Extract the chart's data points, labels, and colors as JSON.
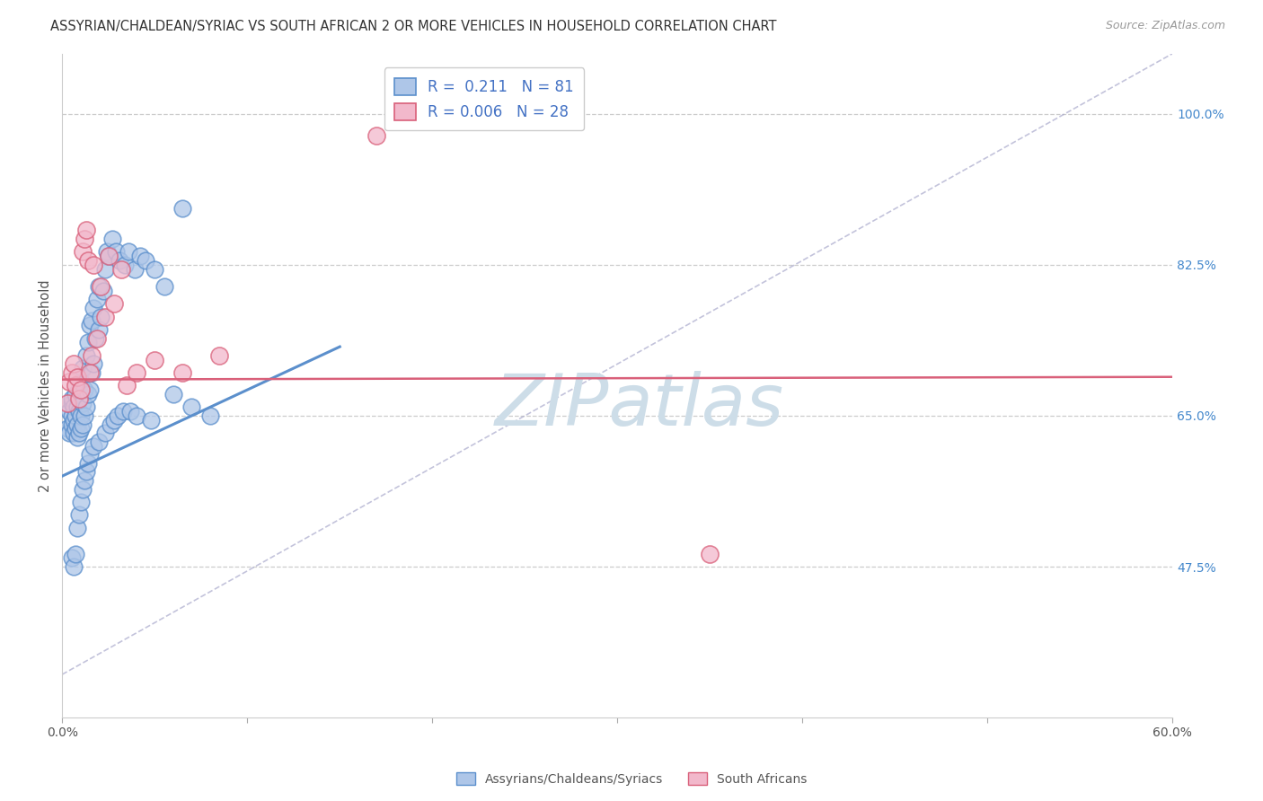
{
  "title": "ASSYRIAN/CHALDEAN/SYRIAC VS SOUTH AFRICAN 2 OR MORE VEHICLES IN HOUSEHOLD CORRELATION CHART",
  "source": "Source: ZipAtlas.com",
  "ylabel": "2 or more Vehicles in Household",
  "yticks_right": [
    47.5,
    65.0,
    82.5,
    100.0
  ],
  "ytick_labels_right": [
    "47.5%",
    "65.0%",
    "82.5%",
    "100.0%"
  ],
  "xmin": 0.0,
  "xmax": 60.0,
  "ymin": 30.0,
  "ymax": 107.0,
  "blue_R": "0.211",
  "blue_N": "81",
  "pink_R": "0.006",
  "pink_N": "28",
  "blue_color": "#aec6e8",
  "blue_edge_color": "#5b8fcc",
  "pink_color": "#f2b8cb",
  "pink_edge_color": "#d9607a",
  "watermark": "ZIPatlas",
  "watermark_color": "#cddde8",
  "legend_label_blue": "Assyrians/Chaldeans/Syriacs",
  "legend_label_pink": "South Africans",
  "blue_scatter_x": [
    0.3,
    0.4,
    0.4,
    0.5,
    0.5,
    0.5,
    0.5,
    0.6,
    0.6,
    0.6,
    0.7,
    0.7,
    0.7,
    0.8,
    0.8,
    0.8,
    0.9,
    0.9,
    0.9,
    1.0,
    1.0,
    1.0,
    1.1,
    1.1,
    1.1,
    1.2,
    1.2,
    1.3,
    1.3,
    1.4,
    1.4,
    1.5,
    1.5,
    1.6,
    1.6,
    1.7,
    1.7,
    1.8,
    1.9,
    2.0,
    2.0,
    2.1,
    2.2,
    2.3,
    2.4,
    2.5,
    2.7,
    2.9,
    3.1,
    3.4,
    3.6,
    3.9,
    4.2,
    4.5,
    5.0,
    5.5,
    6.0,
    7.0,
    8.0,
    0.5,
    0.6,
    0.7,
    0.8,
    0.9,
    1.0,
    1.1,
    1.2,
    1.3,
    1.4,
    1.5,
    1.7,
    2.0,
    2.3,
    2.6,
    2.8,
    3.0,
    3.3,
    3.7,
    4.0,
    4.8,
    6.5
  ],
  "blue_scatter_y": [
    63.5,
    63.0,
    65.5,
    64.0,
    65.0,
    66.5,
    67.0,
    63.0,
    64.5,
    66.0,
    63.5,
    65.0,
    67.5,
    62.5,
    64.0,
    66.0,
    63.0,
    65.5,
    68.0,
    63.5,
    65.0,
    69.0,
    64.0,
    66.5,
    70.5,
    65.0,
    68.0,
    66.0,
    72.0,
    67.5,
    73.5,
    68.0,
    75.5,
    70.0,
    76.0,
    71.0,
    77.5,
    74.0,
    78.5,
    75.0,
    80.0,
    76.5,
    79.5,
    82.0,
    84.0,
    83.5,
    85.5,
    84.0,
    83.0,
    82.5,
    84.0,
    82.0,
    83.5,
    83.0,
    82.0,
    80.0,
    67.5,
    66.0,
    65.0,
    48.5,
    47.5,
    49.0,
    52.0,
    53.5,
    55.0,
    56.5,
    57.5,
    58.5,
    59.5,
    60.5,
    61.5,
    62.0,
    63.0,
    64.0,
    64.5,
    65.0,
    65.5,
    65.5,
    65.0,
    64.5,
    89.0
  ],
  "pink_scatter_x": [
    0.3,
    0.4,
    0.5,
    0.6,
    0.7,
    0.8,
    0.9,
    1.0,
    1.1,
    1.2,
    1.3,
    1.4,
    1.5,
    1.6,
    1.7,
    1.9,
    2.1,
    2.3,
    2.5,
    2.8,
    3.2,
    3.5,
    4.0,
    5.0,
    6.5,
    8.5,
    35.0,
    17.0
  ],
  "pink_scatter_y": [
    66.5,
    69.0,
    70.0,
    71.0,
    68.5,
    69.5,
    67.0,
    68.0,
    84.0,
    85.5,
    86.5,
    83.0,
    70.0,
    72.0,
    82.5,
    74.0,
    80.0,
    76.5,
    83.5,
    78.0,
    82.0,
    68.5,
    70.0,
    71.5,
    70.0,
    72.0,
    49.0,
    97.5
  ],
  "blue_trend_x": [
    0.0,
    15.0
  ],
  "blue_trend_y": [
    58.0,
    73.0
  ],
  "pink_trend_x": [
    0.0,
    60.0
  ],
  "pink_trend_y": [
    69.2,
    69.5
  ],
  "diag_line_x": [
    0.0,
    60.0
  ],
  "diag_line_y": [
    35.0,
    107.0
  ]
}
